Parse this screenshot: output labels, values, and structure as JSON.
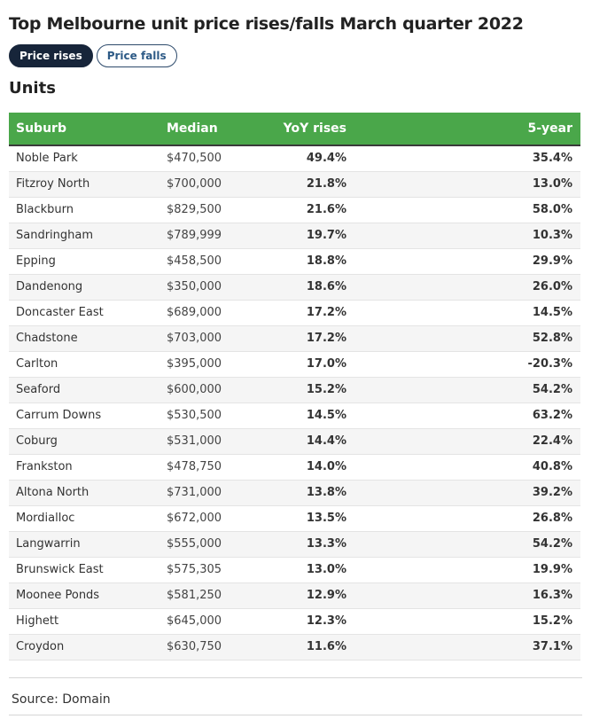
{
  "title": "Top Melbourne unit price rises/falls March quarter 2022",
  "tabs": [
    {
      "label": "Price rises",
      "active": true
    },
    {
      "label": "Price falls",
      "active": false
    }
  ],
  "section_title": "Units",
  "table": {
    "headers": [
      "Suburb",
      "Median",
      "YoY rises",
      "5-year"
    ],
    "header_color": "#4aa74a",
    "rows": [
      [
        "Noble Park",
        "$470,500",
        "49.4%",
        "35.4%"
      ],
      [
        "Fitzroy North",
        "$700,000",
        "21.8%",
        "13.0%"
      ],
      [
        "Blackburn",
        "$829,500",
        "21.6%",
        "58.0%"
      ],
      [
        "Sandringham",
        "$789,999",
        "19.7%",
        "10.3%"
      ],
      [
        "Epping",
        "$458,500",
        "18.8%",
        "29.9%"
      ],
      [
        "Dandenong",
        "$350,000",
        "18.6%",
        "26.0%"
      ],
      [
        "Doncaster East",
        "$689,000",
        "17.2%",
        "14.5%"
      ],
      [
        "Chadstone",
        "$703,000",
        "17.2%",
        "52.8%"
      ],
      [
        "Carlton",
        "$395,000",
        "17.0%",
        "-20.3%"
      ],
      [
        "Seaford",
        "$600,000",
        "15.2%",
        "54.2%"
      ],
      [
        "Carrum Downs",
        "$530,500",
        "14.5%",
        "63.2%"
      ],
      [
        "Coburg",
        "$531,000",
        "14.4%",
        "22.4%"
      ],
      [
        "Frankston",
        "$478,750",
        "14.0%",
        "40.8%"
      ],
      [
        "Altona North",
        "$731,000",
        "13.8%",
        "39.2%"
      ],
      [
        "Mordialloc",
        "$672,000",
        "13.5%",
        "26.8%"
      ],
      [
        "Langwarrin",
        "$555,000",
        "13.3%",
        "54.2%"
      ],
      [
        "Brunswick East",
        "$575,305",
        "13.0%",
        "19.9%"
      ],
      [
        "Moonee Ponds",
        "$581,250",
        "12.9%",
        "16.3%"
      ],
      [
        "Highett",
        "$645,000",
        "12.3%",
        "15.2%"
      ],
      [
        "Croydon",
        "$630,750",
        "11.6%",
        "37.1%"
      ]
    ]
  },
  "source": "Source: Domain"
}
